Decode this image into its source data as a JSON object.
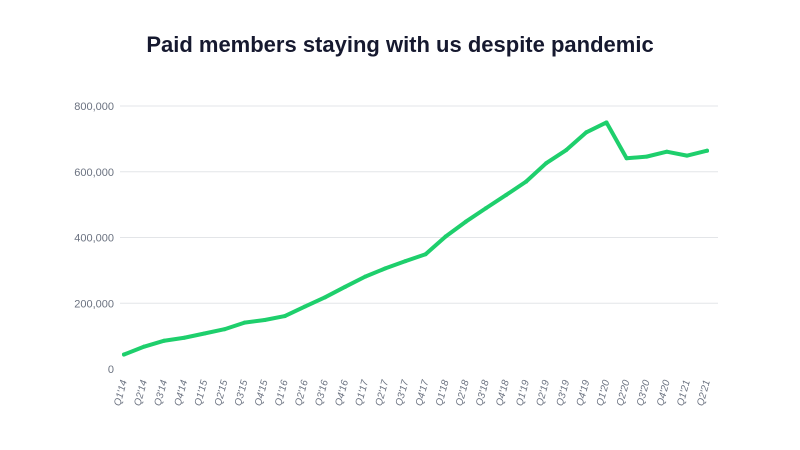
{
  "chart_data": {
    "type": "line",
    "title": "Paid members staying with us despite pandemic",
    "xlabel": "",
    "ylabel": "",
    "ylim": [
      0,
      800000
    ],
    "grid": true,
    "line_color": "#1ecf6c",
    "yticks": [
      0,
      200000,
      400000,
      600000,
      800000
    ],
    "ytick_labels": [
      "0",
      "200,000",
      "400,000",
      "600,000",
      "800,000"
    ],
    "categories": [
      "Q1'14",
      "Q2'14",
      "Q3'14",
      "Q4'14",
      "Q1'15",
      "Q2'15",
      "Q3'15",
      "Q4'15",
      "Q1'16",
      "Q2'16",
      "Q3'16",
      "Q4'16",
      "Q1'17",
      "Q2'17",
      "Q3'17",
      "Q4'17",
      "Q1'18",
      "Q2'18",
      "Q3'18",
      "Q4'18",
      "Q1'19",
      "Q2'19",
      "Q3'19",
      "Q4'19",
      "Q1'20",
      "Q2'20",
      "Q3'20",
      "Q4'20",
      "Q1'21",
      "Q2'21"
    ],
    "values": [
      44000,
      68000,
      86000,
      95000,
      108000,
      121000,
      141000,
      149000,
      161000,
      190000,
      218000,
      250000,
      281000,
      306000,
      328000,
      349000,
      403000,
      448000,
      489000,
      529000,
      570000,
      626000,
      666000,
      720000,
      750000,
      641000,
      646000,
      661000,
      649000,
      664000
    ]
  }
}
